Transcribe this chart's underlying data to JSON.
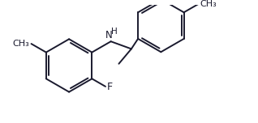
{
  "figsize": [
    3.18,
    1.52
  ],
  "dpi": 100,
  "bg_color": "#ffffff",
  "line_color": "#1a1a2e",
  "line_width": 1.4,
  "font_size_F": 9.0,
  "font_size_NH": 8.5,
  "font_size_CH3": 8.0,
  "label_F": "F",
  "label_NH": "H",
  "label_CH3_left": "CH₃",
  "label_CH3_right": "CH₃"
}
